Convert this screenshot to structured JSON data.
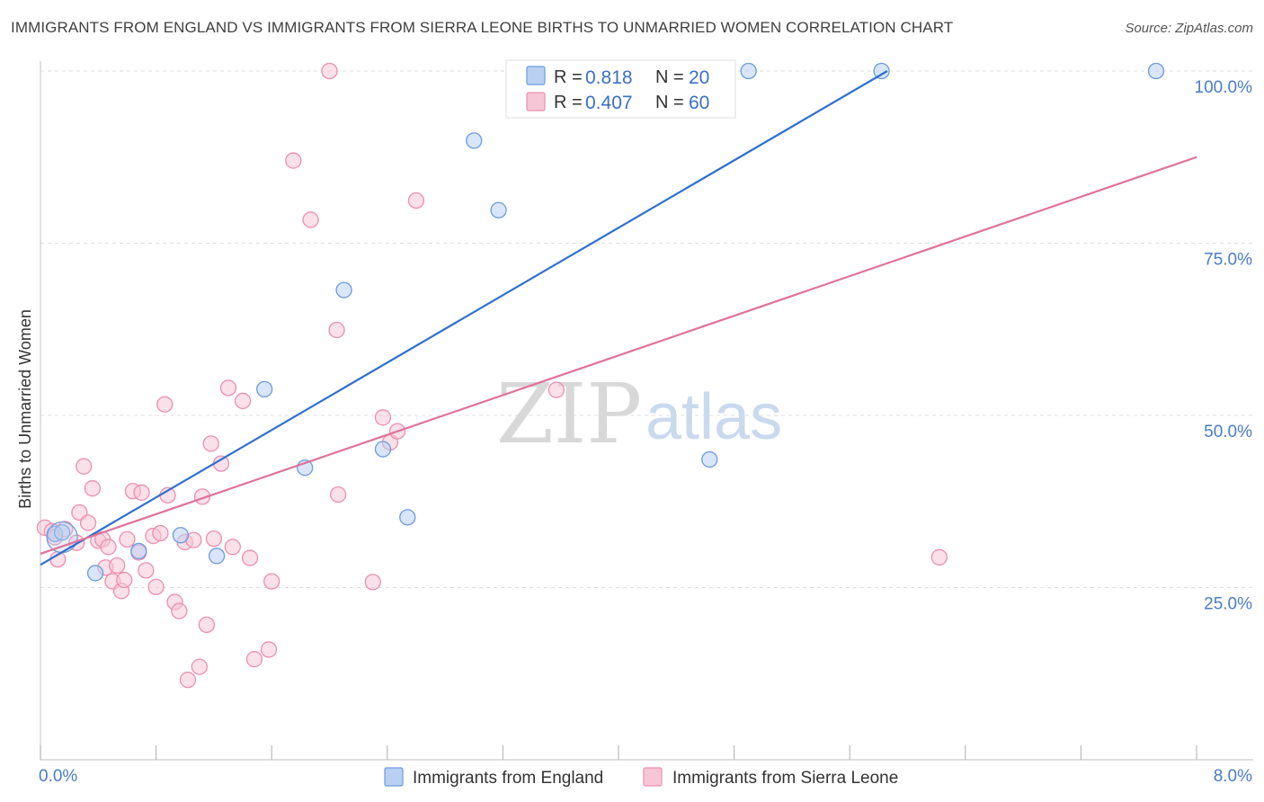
{
  "title": "IMMIGRANTS FROM ENGLAND VS IMMIGRANTS FROM SIERRA LEONE BIRTHS TO UNMARRIED WOMEN CORRELATION CHART",
  "source": "Source: ZipAtlas.com",
  "watermark": {
    "zip": "ZIP",
    "atlas": "atlas"
  },
  "colors": {
    "blue": "#6b9be0",
    "blue_fill": "#b9d0f2",
    "blue_line": "#2f6fce",
    "pink": "#ec8fb0",
    "pink_fill": "#f6c6d6",
    "pink_line": "#e0719a",
    "tick_label": "#4a7cc7"
  },
  "legend_box": {
    "rows": [
      {
        "r_label": "R =",
        "r_value": "0.818",
        "n_label": "N =",
        "n_value": "20"
      },
      {
        "r_label": "R =",
        "r_value": "0.407",
        "n_label": "N =",
        "n_value": "60"
      }
    ]
  },
  "bottom_legend": [
    {
      "label": "Immigrants from England"
    },
    {
      "label": "Immigrants from Sierra Leone"
    }
  ],
  "chart_data": {
    "type": "scatter",
    "title": "IMMIGRANTS FROM ENGLAND VS IMMIGRANTS FROM SIERRA LEONE BIRTHS TO UNMARRIED WOMEN CORRELATION CHART",
    "xlabel": "",
    "ylabel": "Births to Unmarried Women",
    "xlim": [
      0,
      8
    ],
    "ylim": [
      0,
      100
    ],
    "x_tick_labels": [
      "0.0%",
      "8.0%"
    ],
    "y_tick_labels": [
      "25.0%",
      "50.0%",
      "75.0%",
      "100.0%"
    ],
    "y_ticks": [
      25,
      50,
      75,
      100
    ],
    "grid": true,
    "legend_position": "top-center",
    "series": [
      {
        "name": "Immigrants from England",
        "color": "#6b9be0",
        "r": 0.818,
        "n": 20,
        "trend": {
          "x0": 0.0,
          "y0": 28.3,
          "x1": 5.86,
          "y1": 100.0
        },
        "points": [
          [
            0.1,
            32.8
          ],
          [
            0.15,
            33.0
          ],
          [
            0.38,
            27.1
          ],
          [
            0.68,
            30.3
          ],
          [
            0.97,
            32.6
          ],
          [
            1.22,
            29.6
          ],
          [
            1.55,
            53.8
          ],
          [
            1.83,
            42.4
          ],
          [
            2.1,
            68.2
          ],
          [
            2.37,
            45.1
          ],
          [
            2.54,
            35.2
          ],
          [
            3.0,
            89.9
          ],
          [
            3.17,
            79.8
          ],
          [
            3.5,
            100.0
          ],
          [
            3.8,
            100.0
          ],
          [
            4.17,
            100.0
          ],
          [
            4.63,
            43.6
          ],
          [
            4.9,
            100.0
          ],
          [
            5.82,
            100.0
          ],
          [
            7.72,
            100.0
          ]
        ]
      },
      {
        "name": "Immigrants from Sierra Leone",
        "color": "#ec8fb0",
        "r": 0.407,
        "n": 60,
        "trend": {
          "x0": 0.0,
          "y0": 29.9,
          "x1": 8.0,
          "y1": 87.5
        },
        "points": [
          [
            0.03,
            33.7
          ],
          [
            0.08,
            33.2
          ],
          [
            0.1,
            32.3
          ],
          [
            0.12,
            29.1
          ],
          [
            0.17,
            33.5
          ],
          [
            0.25,
            31.5
          ],
          [
            0.27,
            35.9
          ],
          [
            0.3,
            42.6
          ],
          [
            0.33,
            34.4
          ],
          [
            0.36,
            39.4
          ],
          [
            0.4,
            31.8
          ],
          [
            0.43,
            32.0
          ],
          [
            0.45,
            27.9
          ],
          [
            0.47,
            30.9
          ],
          [
            0.5,
            25.9
          ],
          [
            0.53,
            28.2
          ],
          [
            0.56,
            24.5
          ],
          [
            0.58,
            26.1
          ],
          [
            0.6,
            32.0
          ],
          [
            0.64,
            39.0
          ],
          [
            0.68,
            30.1
          ],
          [
            0.7,
            38.8
          ],
          [
            0.73,
            27.5
          ],
          [
            0.78,
            32.5
          ],
          [
            0.8,
            25.1
          ],
          [
            0.83,
            32.9
          ],
          [
            0.86,
            51.6
          ],
          [
            0.88,
            38.4
          ],
          [
            0.93,
            22.9
          ],
          [
            0.96,
            21.6
          ],
          [
            1.0,
            31.6
          ],
          [
            1.02,
            11.6
          ],
          [
            1.06,
            31.9
          ],
          [
            1.1,
            13.5
          ],
          [
            1.12,
            38.2
          ],
          [
            1.15,
            19.6
          ],
          [
            1.18,
            45.9
          ],
          [
            1.2,
            32.1
          ],
          [
            1.25,
            43.0
          ],
          [
            1.3,
            54.0
          ],
          [
            1.33,
            30.9
          ],
          [
            1.4,
            52.1
          ],
          [
            1.45,
            29.3
          ],
          [
            1.48,
            14.6
          ],
          [
            1.58,
            16.0
          ],
          [
            1.6,
            25.9
          ],
          [
            1.75,
            87.0
          ],
          [
            1.87,
            78.4
          ],
          [
            2.0,
            100.0
          ],
          [
            2.05,
            62.4
          ],
          [
            2.06,
            38.5
          ],
          [
            2.3,
            25.8
          ],
          [
            2.37,
            49.7
          ],
          [
            2.42,
            46.1
          ],
          [
            2.47,
            47.7
          ],
          [
            2.6,
            81.2
          ],
          [
            3.57,
            53.7
          ],
          [
            3.85,
            100.0
          ],
          [
            4.35,
            100.0
          ],
          [
            6.22,
            29.4
          ]
        ]
      }
    ]
  }
}
